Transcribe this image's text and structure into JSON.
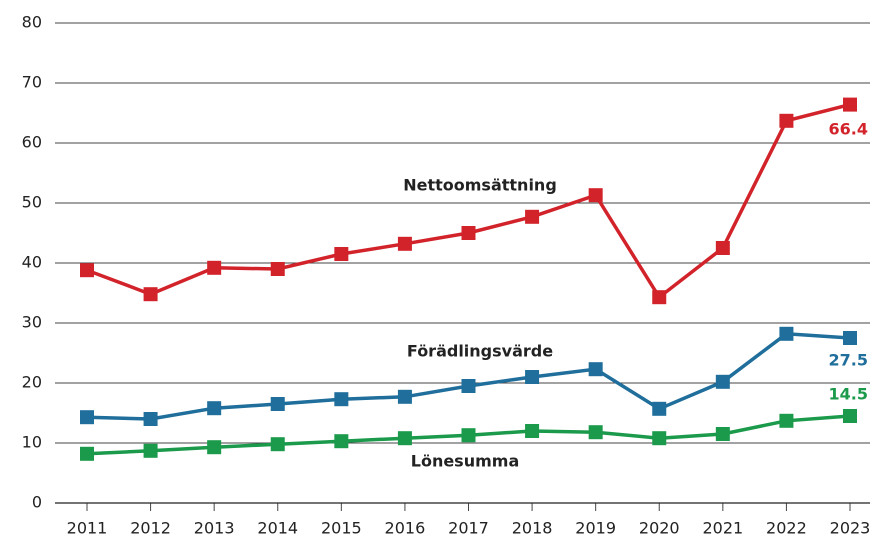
{
  "chart_data": {
    "type": "line",
    "categories": [
      "2011",
      "2012",
      "2013",
      "2014",
      "2015",
      "2016",
      "2017",
      "2018",
      "2019",
      "2020",
      "2021",
      "2022",
      "2023"
    ],
    "series": [
      {
        "name": "Nettoomsättning",
        "color": "#d2232a",
        "values": [
          38.8,
          34.8,
          39.2,
          39,
          41.5,
          43.2,
          45,
          47.7,
          51.3,
          34.3,
          42.5,
          63.7,
          66.4
        ]
      },
      {
        "name": "Förädlingsvärde",
        "color": "#1f6e9b",
        "values": [
          14.3,
          14,
          15.8,
          16.5,
          17.3,
          17.7,
          19.5,
          21,
          22.3,
          15.7,
          20.2,
          28.2,
          27.5
        ]
      },
      {
        "name": "Lönesumma",
        "color": "#1a9a4a",
        "values": [
          8.2,
          8.7,
          9.3,
          9.8,
          10.3,
          10.8,
          11.3,
          12,
          11.8,
          10.8,
          11.5,
          13.7,
          14.5
        ]
      }
    ],
    "ylim": [
      0,
      80
    ],
    "yticks": [
      0,
      10,
      20,
      30,
      40,
      50,
      60,
      70,
      80
    ],
    "grid": true
  }
}
